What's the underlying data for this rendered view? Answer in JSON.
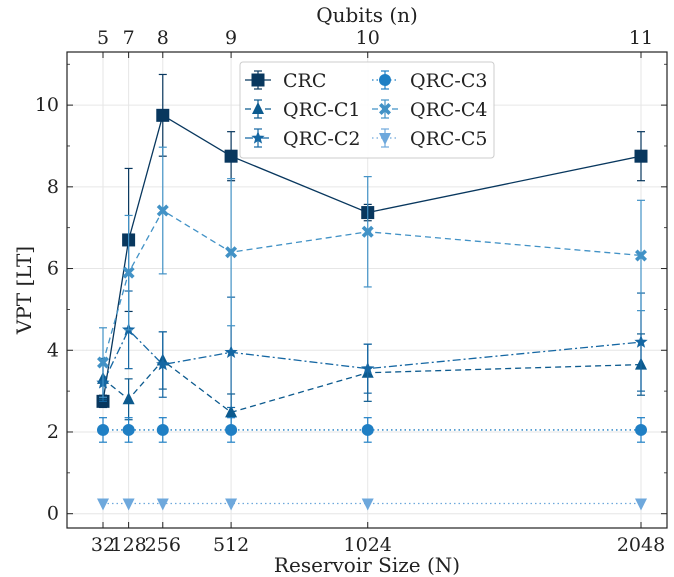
{
  "chart_data": {
    "type": "line",
    "xlabel": "Reservoir Size (N)",
    "ylabel": "VPT [LT]",
    "x2label": "Qubits (n)",
    "x": [
      32,
      128,
      256,
      512,
      1024,
      2048
    ],
    "x_tick_labels": [
      "32",
      "128",
      "256",
      "512",
      "1024",
      "2048"
    ],
    "x2_tick_labels": [
      "5",
      "7",
      "8",
      "9",
      "10",
      "11"
    ],
    "y_ticks": [
      0,
      2,
      4,
      6,
      8,
      10
    ],
    "y_tick_labels": [
      "0",
      "2",
      "4",
      "6",
      "8",
      "10"
    ],
    "ylim": [
      -0.35,
      11.3
    ],
    "grid": true,
    "legend_position": "top-center",
    "series": [
      {
        "name": "CRC",
        "values": [
          2.75,
          6.7,
          9.75,
          8.75,
          7.37,
          8.75
        ],
        "err": [
          0.15,
          1.75,
          1.0,
          0.6,
          0.2,
          0.6
        ],
        "color": "#08375e",
        "marker": "square",
        "dash": "solid"
      },
      {
        "name": "QRC-C1",
        "values": [
          3.3,
          2.8,
          3.75,
          2.48,
          3.45,
          3.65
        ],
        "err": [
          0.5,
          0.5,
          0.7,
          0.45,
          0.7,
          0.75
        ],
        "color": "#0c5a8e",
        "marker": "triangle-up",
        "dash": "dashed"
      },
      {
        "name": "QRC-C2",
        "values": [
          3.2,
          4.5,
          3.65,
          3.95,
          3.55,
          4.2
        ],
        "err": [
          0.45,
          0.95,
          0.8,
          1.35,
          0.6,
          1.2
        ],
        "color": "#1567a3",
        "marker": "star",
        "dash": "dashdot"
      },
      {
        "name": "QRC-C3",
        "values": [
          2.05,
          2.05,
          2.05,
          2.05,
          2.05,
          2.05
        ],
        "err": [
          0.3,
          0.3,
          0.3,
          0.3,
          0.3,
          0.3
        ],
        "color": "#1f7fc4",
        "marker": "circle",
        "dash": "dotted"
      },
      {
        "name": "QRC-C4",
        "values": [
          3.7,
          5.9,
          7.42,
          6.4,
          6.9,
          6.32
        ],
        "err": [
          0.85,
          1.4,
          1.55,
          1.8,
          1.35,
          1.35
        ],
        "color": "#4292c6",
        "marker": "x-filled",
        "dash": "dashed"
      },
      {
        "name": "QRC-C5",
        "values": [
          0.25,
          0.25,
          0.25,
          0.25,
          0.25,
          0.25
        ],
        "err": [
          0,
          0,
          0,
          0,
          0,
          0
        ],
        "color": "#6ea8dc",
        "marker": "triangle-down",
        "dash": "dotted"
      }
    ]
  }
}
